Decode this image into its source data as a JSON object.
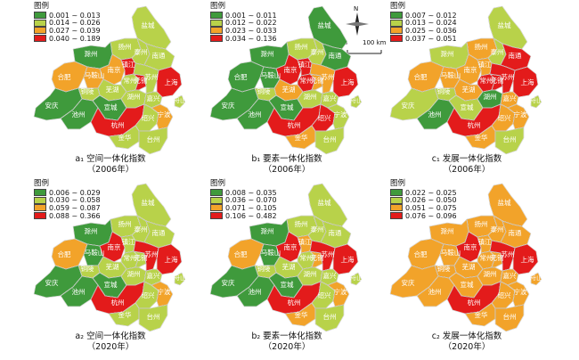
{
  "colors": {
    "c1": "#3f9a3c",
    "c2": "#b8d24a",
    "c3": "#f2a32a",
    "c4": "#e31b1b",
    "edge": "#9a9a9a",
    "label": "#1a4a1a"
  },
  "scale": {
    "n": "N",
    "zero": "0",
    "dist": "100 km"
  },
  "panels": [
    {
      "id": "a1",
      "legend_title": "图例",
      "legend": [
        "0.001 ~ 0.013",
        "0.014 ~ 0.026",
        "0.027 ~ 0.039",
        "0.040 ~ 0.189"
      ],
      "caption": "a₁ 空间一体化指数",
      "year": "（2006年）",
      "cls": {
        "盐城": 2,
        "扬州": 2,
        "泰州": 2,
        "南通": 2,
        "滁州": 1,
        "合肥": 3,
        "马鞍山": 3,
        "南京": 3,
        "镇江": 4,
        "常州": 2,
        "苏州": 2,
        "无锡": 4,
        "芜湖": 2,
        "上海": 4,
        "铜陵": 2,
        "宣城": 1,
        "湖州": 2,
        "嘉兴": 2,
        "安庆": 1,
        "池州": 1,
        "杭州": 4,
        "绍兴": 2,
        "宁波": 3,
        "舟山": 2,
        "金华": 2,
        "台州": 2
      }
    },
    {
      "id": "b1",
      "legend_title": "图例",
      "legend": [
        "0.001 ~ 0.011",
        "0.012 ~ 0.022",
        "0.023 ~ 0.033",
        "0.034 ~ 0.136"
      ],
      "caption": "b₁ 要素一体化指数",
      "year": "（2006年）",
      "cls": {
        "盐城": 1,
        "扬州": 2,
        "泰州": 2,
        "南通": 1,
        "滁州": 1,
        "合肥": 1,
        "马鞍山": 1,
        "南京": 4,
        "镇江": 4,
        "常州": 4,
        "苏州": 3,
        "无锡": 3,
        "芜湖": 3,
        "上海": 4,
        "铜陵": 2,
        "宣城": 1,
        "湖州": 2,
        "嘉兴": 2,
        "安庆": 1,
        "池州": 1,
        "杭州": 4,
        "绍兴": 4,
        "宁波": 2,
        "舟山": 2,
        "金华": 3,
        "台州": 2
      }
    },
    {
      "id": "c1",
      "legend_title": "图例",
      "legend": [
        "0.007 ~ 0.012",
        "0.013 ~ 0.024",
        "0.025 ~ 0.036",
        "0.037 ~ 0.051"
      ],
      "caption": "c₁ 发展一体化指数",
      "year": "（2006年）",
      "cls": {
        "盐城": 2,
        "扬州": 3,
        "泰州": 2,
        "南通": 4,
        "滁州": 2,
        "合肥": 3,
        "马鞍山": 3,
        "南京": 3,
        "镇江": 3,
        "常州": 4,
        "苏州": 4,
        "无锡": 4,
        "芜湖": 3,
        "上海": 4,
        "铜陵": 2,
        "宣城": 2,
        "湖州": 1,
        "嘉兴": 3,
        "安庆": 2,
        "池州": 1,
        "杭州": 4,
        "绍兴": 3,
        "宁波": 3,
        "舟山": 2,
        "金华": 3,
        "台州": 2
      }
    },
    {
      "id": "a2",
      "legend_title": "图例",
      "legend": [
        "0.006 ~ 0.029",
        "0.030 ~ 0.058",
        "0.059 ~ 0.087",
        "0.088 ~ 0.366"
      ],
      "caption": "a₂ 空间一体化指数",
      "year": "（2020年）",
      "cls": {
        "盐城": 2,
        "扬州": 2,
        "泰州": 2,
        "南通": 2,
        "滁州": 1,
        "合肥": 3,
        "马鞍山": 1,
        "南京": 4,
        "镇江": 2,
        "常州": 2,
        "苏州": 4,
        "无锡": 2,
        "芜湖": 2,
        "上海": 4,
        "铜陵": 2,
        "宣城": 1,
        "湖州": 2,
        "嘉兴": 2,
        "安庆": 1,
        "池州": 1,
        "杭州": 4,
        "绍兴": 2,
        "宁波": 3,
        "舟山": 2,
        "金华": 2,
        "台州": 2
      }
    },
    {
      "id": "b2",
      "legend_title": "图例",
      "legend": [
        "0.008 ~ 0.035",
        "0.036 ~ 0.070",
        "0.071 ~ 0.105",
        "0.106 ~ 0.482"
      ],
      "caption": "b₂ 要素一体化指数",
      "year": "（2020年）",
      "cls": {
        "盐城": 2,
        "扬州": 2,
        "泰州": 2,
        "南通": 2,
        "滁州": 1,
        "合肥": 3,
        "马鞍山": 1,
        "南京": 4,
        "镇江": 3,
        "常州": 2,
        "苏州": 4,
        "无锡": 3,
        "芜湖": 2,
        "上海": 4,
        "铜陵": 2,
        "宣城": 1,
        "湖州": 2,
        "嘉兴": 2,
        "安庆": 1,
        "池州": 1,
        "杭州": 4,
        "绍兴": 2,
        "宁波": 3,
        "舟山": 2,
        "金华": 3,
        "台州": 2
      }
    },
    {
      "id": "c2",
      "legend_title": "图例",
      "legend": [
        "0.022 ~ 0.025",
        "0.026 ~ 0.050",
        "0.051 ~ 0.075",
        "0.076 ~ 0.096"
      ],
      "caption": "c₂ 发展一体化指数",
      "year": "（2020年）",
      "cls": {
        "盐城": 3,
        "扬州": 3,
        "泰州": 3,
        "南通": 3,
        "滁州": 3,
        "合肥": 3,
        "马鞍山": 3,
        "南京": 4,
        "镇江": 3,
        "常州": 3,
        "苏州": 4,
        "无锡": 3,
        "芜湖": 3,
        "上海": 4,
        "铜陵": 3,
        "宣城": 3,
        "湖州": 3,
        "嘉兴": 3,
        "安庆": 3,
        "池州": 3,
        "杭州": 4,
        "绍兴": 3,
        "宁波": 3,
        "舟山": 3,
        "金华": 3,
        "台州": 3
      }
    }
  ]
}
